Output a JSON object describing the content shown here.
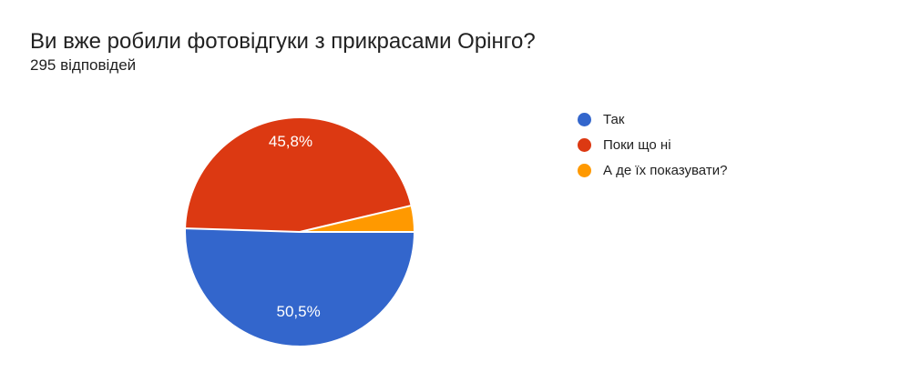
{
  "header": {
    "title": "Ви вже робили фотовідгуки з прикрасами Орінго?",
    "subtitle": "295 відповідей"
  },
  "chart_data": {
    "type": "pie",
    "title": "Ви вже робили фотовідгуки з прикрасами Орінго?",
    "subtitle": "295 відповідей",
    "total_responses": 295,
    "start_angle_deg": 0,
    "direction": "clockwise",
    "legend_position": "right",
    "background_color": "#ffffff",
    "label_text_color": "#ffffff",
    "separator_color": "#ffffff",
    "slices": [
      {
        "label": "Так",
        "value": 50.5,
        "display_percent": "50,5%",
        "color": "#3366CC",
        "label_radius_factor": 0.7
      },
      {
        "label": "Поки що ні",
        "value": 45.8,
        "display_percent": "45,8%",
        "color": "#DC3912",
        "label_radius_factor": 0.8
      },
      {
        "label": "А де їх показувати?",
        "value": 3.7,
        "display_percent": "",
        "color": "#FF9900",
        "label_radius_factor": 0.75
      }
    ]
  }
}
